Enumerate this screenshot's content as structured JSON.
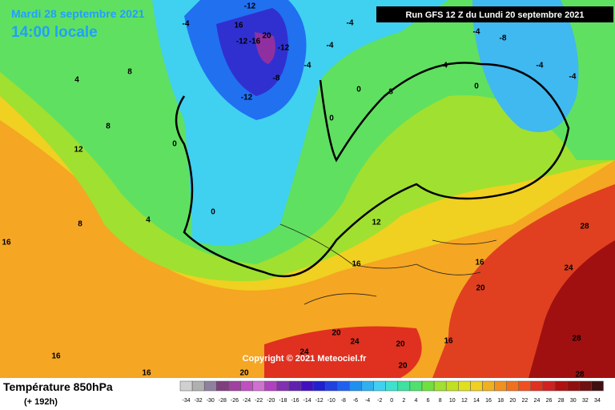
{
  "header": {
    "date": "Mardi 28 septembre 2021",
    "time": "14:00 locale",
    "run": "Run GFS 12 Z du Lundi 20 septembre 2021"
  },
  "copyright": "Copyright © 2021 Meteociel.fr",
  "footer": {
    "title": "Température 850hPa",
    "lead": "(+ 192h)"
  },
  "legend": {
    "values": [
      -34,
      -32,
      -30,
      -28,
      -26,
      -24,
      -22,
      -20,
      -18,
      -16,
      -14,
      -12,
      -10,
      -8,
      -6,
      -4,
      -2,
      0,
      2,
      4,
      6,
      8,
      10,
      12,
      14,
      16,
      18,
      20,
      22,
      24,
      26,
      28,
      30,
      32,
      34
    ],
    "colors": [
      "#d0d0d0",
      "#b0b0b0",
      "#9080a0",
      "#804080",
      "#a040a0",
      "#c050c0",
      "#d070d0",
      "#b040c0",
      "#8030b0",
      "#6020b0",
      "#4010c0",
      "#2020d0",
      "#2040e0",
      "#2060f0",
      "#2090f0",
      "#30b0f0",
      "#40d0f0",
      "#40e0d0",
      "#40e0a0",
      "#50e070",
      "#70e040",
      "#a0e030",
      "#c0e020",
      "#e0e020",
      "#f0d020",
      "#f0b020",
      "#f09020",
      "#f07020",
      "#f05020",
      "#e03020",
      "#d02020",
      "#b01010",
      "#901010",
      "#701010",
      "#401010"
    ]
  },
  "contour_labels": [
    "-4",
    "-12",
    "16",
    "-12",
    "-16",
    "20",
    "-12",
    "-8",
    "-12",
    "-4",
    "-4",
    "-4",
    "-4",
    "-8",
    "-4",
    "-4",
    "0",
    "0",
    "4",
    "8",
    "0",
    "4",
    "8",
    "8",
    "12",
    "0",
    "0",
    "4",
    "8",
    "16",
    "12",
    "16",
    "16",
    "20",
    "24",
    "28",
    "20",
    "24",
    "24",
    "20",
    "16",
    "28",
    "16",
    "16",
    "20",
    "20",
    "28"
  ]
}
